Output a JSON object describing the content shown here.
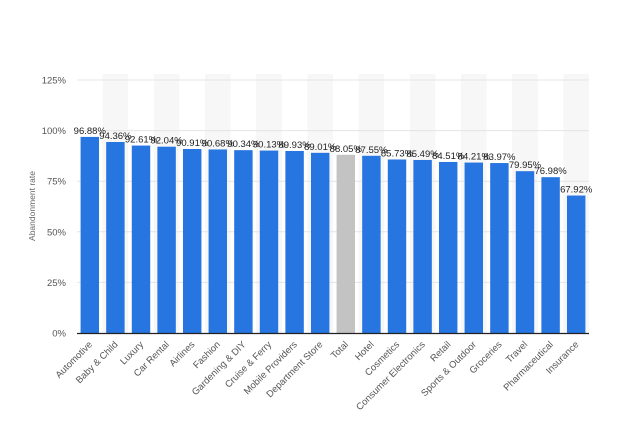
{
  "chart_data": {
    "type": "bar",
    "ylabel": "Abandonment rate",
    "ylim": [
      0,
      125
    ],
    "yticks": [
      0,
      25,
      50,
      75,
      100,
      125
    ],
    "ytick_labels": [
      "0%",
      "25%",
      "50%",
      "75%",
      "100%",
      "125%"
    ],
    "grid": true,
    "categories": [
      "Automotive",
      "Baby & Child",
      "Luxury",
      "Car Rental",
      "Airlines",
      "Fashion",
      "Gardening & DIY",
      "Cruise & Ferry",
      "Mobile Providers",
      "Department Store",
      "Total",
      "Hotel",
      "Cosmetics",
      "Consumer Electronics",
      "Retail",
      "Sports & Outdoor",
      "Groceries",
      "Travel",
      "Pharmaceutical",
      "Insurance"
    ],
    "values": [
      96.88,
      94.36,
      92.61,
      92.04,
      90.91,
      90.68,
      90.34,
      90.13,
      89.93,
      89.01,
      88.05,
      87.55,
      85.73,
      85.49,
      84.51,
      84.21,
      83.97,
      79.95,
      76.98,
      67.92
    ],
    "value_labels": [
      "96.88%",
      "94.36%",
      "92.61%",
      "92.04%",
      "90.91%",
      "90.68%",
      "90.34%",
      "90.13%",
      "89.93%",
      "89.01%",
      "88.05%",
      "87.55%",
      "85.73%",
      "85.49%",
      "84.51%",
      "84.21%",
      "83.97%",
      "79.95%",
      "76.98%",
      "67.92%"
    ],
    "colors": {
      "bar": "#2775e0",
      "highlight": "#c3c3c3",
      "grid": "#e4e4e4",
      "band": "#f7f7f7",
      "axis": "#222222"
    },
    "highlight_category": "Total"
  }
}
